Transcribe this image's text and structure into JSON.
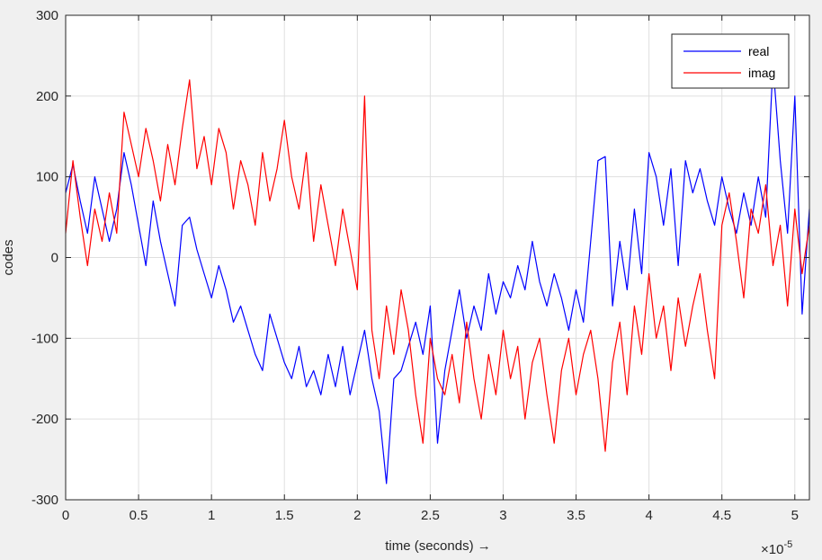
{
  "chart_data": {
    "type": "line",
    "xlabel": "time  (seconds) →",
    "ylabel": "codes",
    "x_multiplier": "×10",
    "x_multiplier_exp": "-5",
    "xlim": [
      0,
      5.1
    ],
    "ylim": [
      -300,
      300
    ],
    "xticks": [
      0,
      0.5,
      1,
      1.5,
      2,
      2.5,
      3,
      3.5,
      4,
      4.5,
      5
    ],
    "xtick_labels": [
      "0",
      "0.5",
      "1",
      "1.5",
      "2",
      "2.5",
      "3",
      "3.5",
      "4",
      "4.5",
      "5"
    ],
    "yticks": [
      -300,
      -200,
      -100,
      0,
      100,
      200,
      300
    ],
    "ytick_labels": [
      "-300",
      "-200",
      "-100",
      "0",
      "100",
      "200",
      "300"
    ],
    "grid": true,
    "legend_position": "top-right",
    "series": [
      {
        "name": "real",
        "color": "#0000ff",
        "points": [
          [
            0.0,
            80
          ],
          [
            0.05,
            115
          ],
          [
            0.1,
            70
          ],
          [
            0.15,
            30
          ],
          [
            0.2,
            100
          ],
          [
            0.25,
            60
          ],
          [
            0.3,
            20
          ],
          [
            0.35,
            60
          ],
          [
            0.4,
            130
          ],
          [
            0.45,
            90
          ],
          [
            0.5,
            40
          ],
          [
            0.55,
            -10
          ],
          [
            0.6,
            70
          ],
          [
            0.65,
            20
          ],
          [
            0.7,
            -20
          ],
          [
            0.75,
            -60
          ],
          [
            0.8,
            40
          ],
          [
            0.85,
            50
          ],
          [
            0.9,
            10
          ],
          [
            0.95,
            -20
          ],
          [
            1.0,
            -50
          ],
          [
            1.05,
            -10
          ],
          [
            1.1,
            -40
          ],
          [
            1.15,
            -80
          ],
          [
            1.2,
            -60
          ],
          [
            1.25,
            -90
          ],
          [
            1.3,
            -120
          ],
          [
            1.35,
            -140
          ],
          [
            1.4,
            -70
          ],
          [
            1.45,
            -100
          ],
          [
            1.5,
            -130
          ],
          [
            1.55,
            -150
          ],
          [
            1.6,
            -110
          ],
          [
            1.65,
            -160
          ],
          [
            1.7,
            -140
          ],
          [
            1.75,
            -170
          ],
          [
            1.8,
            -120
          ],
          [
            1.85,
            -160
          ],
          [
            1.9,
            -110
          ],
          [
            1.95,
            -170
          ],
          [
            2.0,
            -130
          ],
          [
            2.05,
            -90
          ],
          [
            2.1,
            -150
          ],
          [
            2.15,
            -190
          ],
          [
            2.2,
            -280
          ],
          [
            2.25,
            -150
          ],
          [
            2.3,
            -140
          ],
          [
            2.35,
            -110
          ],
          [
            2.4,
            -80
          ],
          [
            2.45,
            -120
          ],
          [
            2.5,
            -60
          ],
          [
            2.55,
            -230
          ],
          [
            2.6,
            -140
          ],
          [
            2.65,
            -90
          ],
          [
            2.7,
            -40
          ],
          [
            2.75,
            -100
          ],
          [
            2.8,
            -60
          ],
          [
            2.85,
            -90
          ],
          [
            2.9,
            -20
          ],
          [
            2.95,
            -70
          ],
          [
            3.0,
            -30
          ],
          [
            3.05,
            -50
          ],
          [
            3.1,
            -10
          ],
          [
            3.15,
            -40
          ],
          [
            3.2,
            20
          ],
          [
            3.25,
            -30
          ],
          [
            3.3,
            -60
          ],
          [
            3.35,
            -20
          ],
          [
            3.4,
            -50
          ],
          [
            3.45,
            -90
          ],
          [
            3.5,
            -40
          ],
          [
            3.55,
            -80
          ],
          [
            3.6,
            20
          ],
          [
            3.65,
            120
          ],
          [
            3.7,
            125
          ],
          [
            3.75,
            -60
          ],
          [
            3.8,
            20
          ],
          [
            3.85,
            -40
          ],
          [
            3.9,
            60
          ],
          [
            3.95,
            -20
          ],
          [
            4.0,
            130
          ],
          [
            4.05,
            100
          ],
          [
            4.1,
            40
          ],
          [
            4.15,
            110
          ],
          [
            4.2,
            -10
          ],
          [
            4.25,
            120
          ],
          [
            4.3,
            80
          ],
          [
            4.35,
            110
          ],
          [
            4.4,
            70
          ],
          [
            4.45,
            40
          ],
          [
            4.5,
            100
          ],
          [
            4.55,
            60
          ],
          [
            4.6,
            30
          ],
          [
            4.65,
            80
          ],
          [
            4.7,
            40
          ],
          [
            4.75,
            100
          ],
          [
            4.8,
            50
          ],
          [
            4.85,
            240
          ],
          [
            4.9,
            120
          ],
          [
            4.95,
            30
          ],
          [
            5.0,
            200
          ],
          [
            5.05,
            -70
          ],
          [
            5.1,
            60
          ]
        ]
      },
      {
        "name": "imag",
        "color": "#ff0000",
        "points": [
          [
            0.0,
            30
          ],
          [
            0.05,
            120
          ],
          [
            0.1,
            50
          ],
          [
            0.15,
            -10
          ],
          [
            0.2,
            60
          ],
          [
            0.25,
            20
          ],
          [
            0.3,
            80
          ],
          [
            0.35,
            30
          ],
          [
            0.4,
            180
          ],
          [
            0.45,
            140
          ],
          [
            0.5,
            100
          ],
          [
            0.55,
            160
          ],
          [
            0.6,
            120
          ],
          [
            0.65,
            70
          ],
          [
            0.7,
            140
          ],
          [
            0.75,
            90
          ],
          [
            0.8,
            160
          ],
          [
            0.85,
            220
          ],
          [
            0.9,
            110
          ],
          [
            0.95,
            150
          ],
          [
            1.0,
            90
          ],
          [
            1.05,
            160
          ],
          [
            1.1,
            130
          ],
          [
            1.15,
            60
          ],
          [
            1.2,
            120
          ],
          [
            1.25,
            90
          ],
          [
            1.3,
            40
          ],
          [
            1.35,
            130
          ],
          [
            1.4,
            70
          ],
          [
            1.45,
            110
          ],
          [
            1.5,
            170
          ],
          [
            1.55,
            100
          ],
          [
            1.6,
            60
          ],
          [
            1.65,
            130
          ],
          [
            1.7,
            20
          ],
          [
            1.75,
            90
          ],
          [
            1.8,
            40
          ],
          [
            1.85,
            -10
          ],
          [
            1.9,
            60
          ],
          [
            1.95,
            10
          ],
          [
            2.0,
            -40
          ],
          [
            2.05,
            200
          ],
          [
            2.1,
            -90
          ],
          [
            2.15,
            -150
          ],
          [
            2.2,
            -60
          ],
          [
            2.25,
            -120
          ],
          [
            2.3,
            -40
          ],
          [
            2.35,
            -90
          ],
          [
            2.4,
            -170
          ],
          [
            2.45,
            -230
          ],
          [
            2.5,
            -100
          ],
          [
            2.55,
            -150
          ],
          [
            2.6,
            -170
          ],
          [
            2.65,
            -120
          ],
          [
            2.7,
            -180
          ],
          [
            2.75,
            -80
          ],
          [
            2.8,
            -150
          ],
          [
            2.85,
            -200
          ],
          [
            2.9,
            -120
          ],
          [
            2.95,
            -170
          ],
          [
            3.0,
            -90
          ],
          [
            3.05,
            -150
          ],
          [
            3.1,
            -110
          ],
          [
            3.15,
            -200
          ],
          [
            3.2,
            -130
          ],
          [
            3.25,
            -100
          ],
          [
            3.3,
            -170
          ],
          [
            3.35,
            -230
          ],
          [
            3.4,
            -140
          ],
          [
            3.45,
            -100
          ],
          [
            3.5,
            -170
          ],
          [
            3.55,
            -120
          ],
          [
            3.6,
            -90
          ],
          [
            3.65,
            -150
          ],
          [
            3.7,
            -240
          ],
          [
            3.75,
            -130
          ],
          [
            3.8,
            -80
          ],
          [
            3.85,
            -170
          ],
          [
            3.9,
            -60
          ],
          [
            3.95,
            -120
          ],
          [
            4.0,
            -20
          ],
          [
            4.05,
            -100
          ],
          [
            4.1,
            -60
          ],
          [
            4.15,
            -140
          ],
          [
            4.2,
            -50
          ],
          [
            4.25,
            -110
          ],
          [
            4.3,
            -60
          ],
          [
            4.35,
            -20
          ],
          [
            4.4,
            -90
          ],
          [
            4.45,
            -150
          ],
          [
            4.5,
            40
          ],
          [
            4.55,
            80
          ],
          [
            4.6,
            20
          ],
          [
            4.65,
            -50
          ],
          [
            4.7,
            60
          ],
          [
            4.75,
            30
          ],
          [
            4.8,
            90
          ],
          [
            4.85,
            -10
          ],
          [
            4.9,
            40
          ],
          [
            4.95,
            -60
          ],
          [
            5.0,
            60
          ],
          [
            5.05,
            -20
          ],
          [
            5.1,
            40
          ]
        ]
      }
    ]
  }
}
